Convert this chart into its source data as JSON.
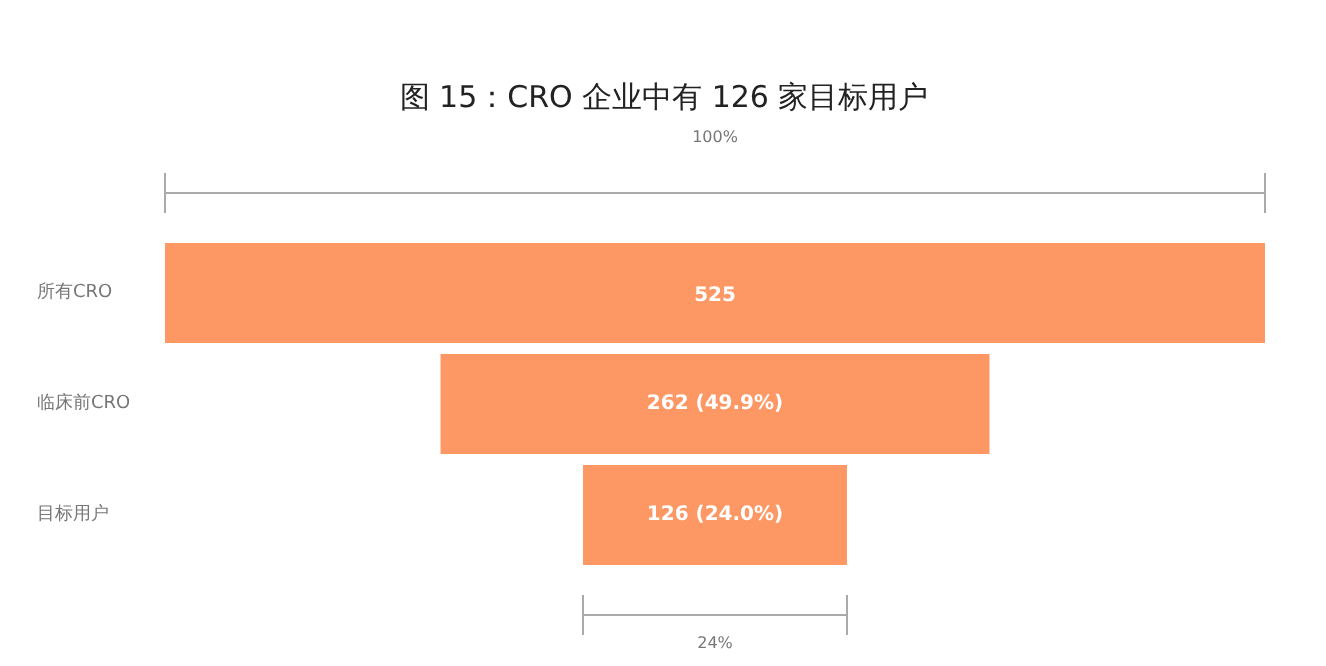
{
  "chart_data": {
    "type": "other",
    "title": "图 15：CRO 企业中有 126 家目标用户",
    "categories": [
      "所有CRO",
      "临床前CRO",
      "目标用户"
    ],
    "values": [
      525,
      262,
      126
    ],
    "value_labels": [
      "525",
      "262 (49.9%)",
      "126 (24.0%)"
    ],
    "colors": [
      "#fd9764",
      "#fd9764",
      "#fd9764"
    ],
    "annotations": [
      "100%",
      "24%"
    ]
  }
}
